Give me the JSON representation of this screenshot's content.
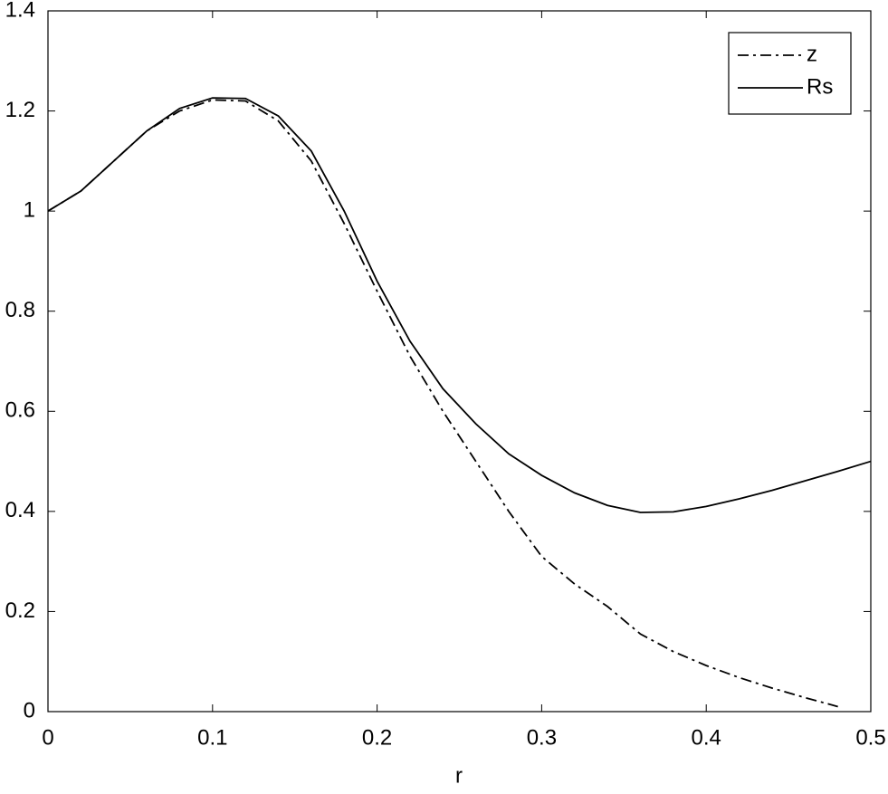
{
  "chart_data": {
    "type": "line",
    "x_label": "r",
    "x": [
      0,
      0.02,
      0.04,
      0.06,
      0.08,
      0.1,
      0.12,
      0.14,
      0.16,
      0.18,
      0.2,
      0.22,
      0.24,
      0.26,
      0.28,
      0.3,
      0.32,
      0.34,
      0.36,
      0.38,
      0.4,
      0.42,
      0.44,
      0.46,
      0.48,
      0.5
    ],
    "series": [
      {
        "name": "z",
        "color": "#000000",
        "dash": "dashdot",
        "values": [
          1.0,
          1.04,
          1.1,
          1.16,
          1.2,
          1.222,
          1.22,
          1.18,
          1.1,
          0.975,
          0.84,
          0.71,
          0.6,
          0.5,
          0.4,
          0.31,
          0.255,
          0.21,
          0.155,
          0.12,
          0.092,
          0.068,
          0.047,
          0.028,
          0.01,
          null
        ]
      },
      {
        "name": "Rs",
        "color": "#000000",
        "dash": "solid",
        "values": [
          1.0,
          1.04,
          1.1,
          1.16,
          1.205,
          1.226,
          1.225,
          1.19,
          1.12,
          1.0,
          0.86,
          0.74,
          0.645,
          0.575,
          0.515,
          0.472,
          0.437,
          0.412,
          0.398,
          0.399,
          0.41,
          0.425,
          0.442,
          0.461,
          0.48,
          0.5
        ]
      }
    ],
    "xlim": [
      0,
      0.5
    ],
    "xticks": [
      0,
      0.1,
      0.2,
      0.3,
      0.4,
      0.5
    ],
    "ylim": [
      0,
      1.4
    ],
    "yticks": [
      0,
      0.2,
      0.4,
      0.6,
      0.8,
      1,
      1.2,
      1.4
    ],
    "grid": false,
    "legend": "upper right"
  }
}
